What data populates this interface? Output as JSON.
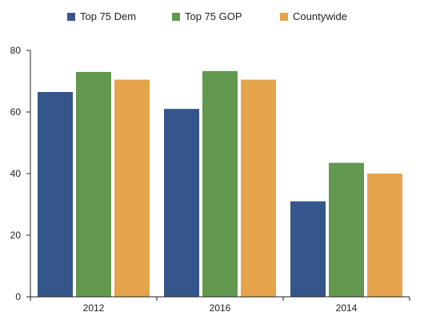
{
  "chart_data": {
    "type": "bar",
    "categories": [
      "2012",
      "2016",
      "2014"
    ],
    "series": [
      {
        "name": "Top 75 Dem",
        "color": "#34568b",
        "values": [
          66.5,
          61,
          31
        ]
      },
      {
        "name": "Top 75 GOP",
        "color": "#63984f",
        "values": [
          73,
          73.3,
          43.5
        ]
      },
      {
        "name": "Countywide",
        "color": "#e5a44b",
        "values": [
          70.5,
          70.5,
          40
        ]
      }
    ],
    "y_ticks": [
      "0",
      "20",
      "40",
      "60",
      "80"
    ],
    "ylim": [
      0,
      80
    ],
    "grid": false,
    "legend_position": "top"
  }
}
